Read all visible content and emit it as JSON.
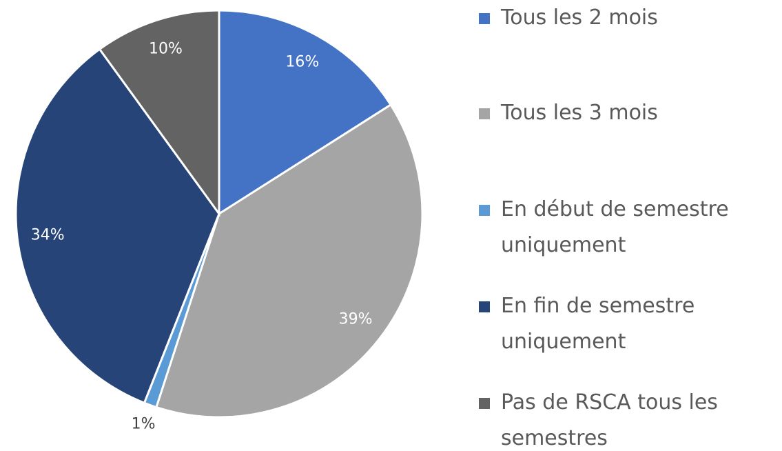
{
  "chart_data": {
    "type": "pie",
    "categories": [
      "Tous les 2 mois",
      "Tous les 3 mois",
      "En début de semestre uniquement",
      "En fin de semestre uniquement",
      "Pas de RSCA tous les semestres"
    ],
    "values": [
      16,
      39,
      1,
      34,
      10
    ],
    "value_labels": [
      "16%",
      "39%",
      "1%",
      "34%",
      "10%"
    ],
    "colors": [
      "#4472c4",
      "#a5a5a5",
      "#5b9bd5",
      "#264478",
      "#636363"
    ]
  }
}
